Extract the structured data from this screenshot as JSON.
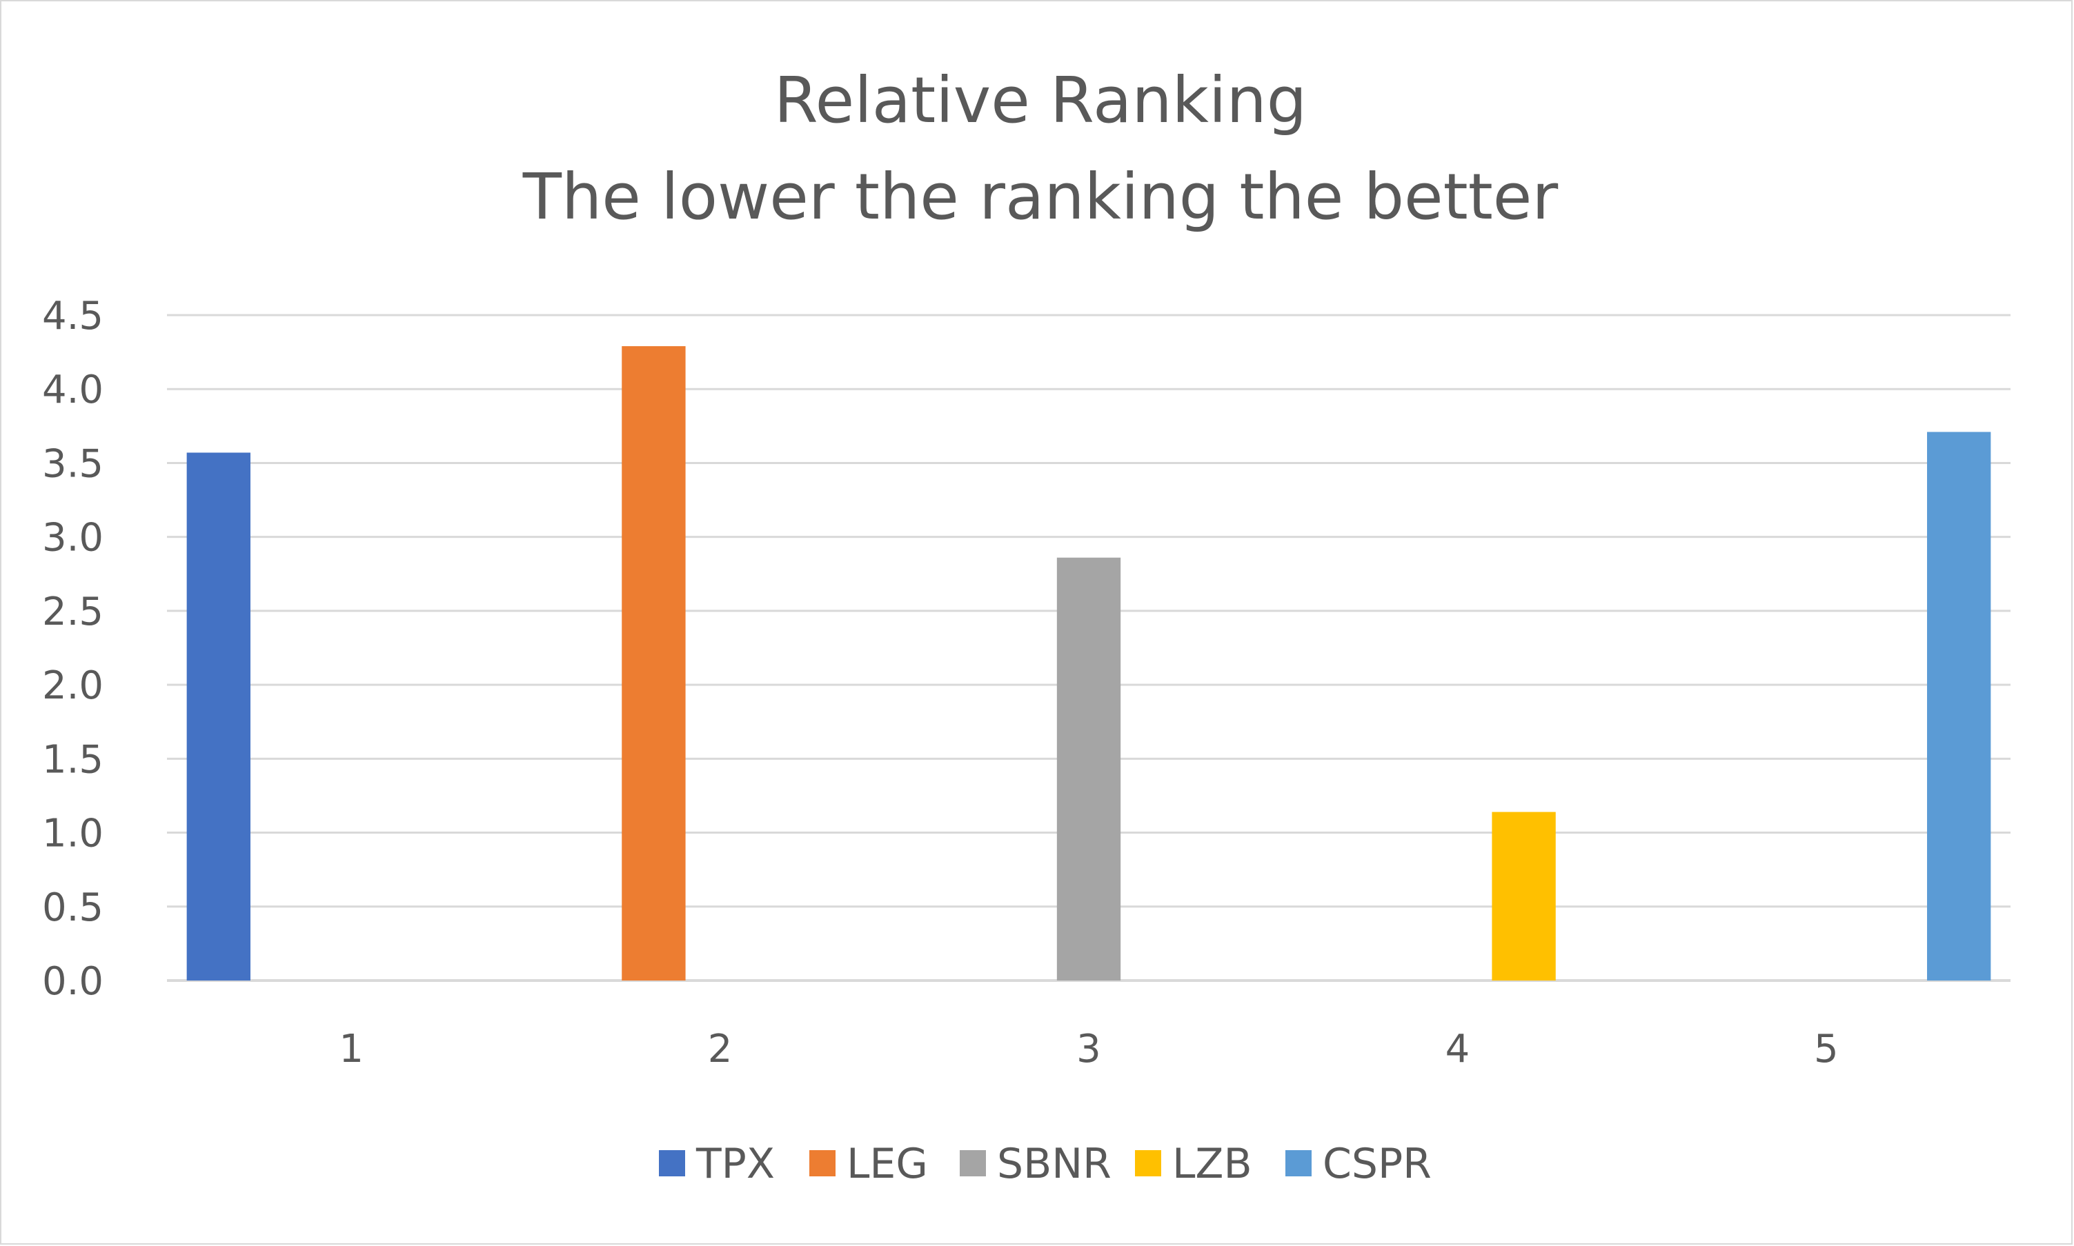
{
  "chart_data": {
    "type": "bar",
    "title": "Relative Ranking",
    "subtitle": "The lower the ranking the better",
    "xlabel": "",
    "ylabel": "",
    "categories": [
      "1",
      "2",
      "3",
      "4",
      "5"
    ],
    "y_ticks": [
      "0.0",
      "0.5",
      "1.0",
      "1.5",
      "2.0",
      "2.5",
      "3.0",
      "3.5",
      "4.0",
      "4.5"
    ],
    "ylim": [
      0,
      4.5
    ],
    "grid": true,
    "legend_position": "bottom",
    "series": [
      {
        "name": "TPX",
        "color": "#4472C4",
        "values": [
          3.57,
          null,
          null,
          null,
          null
        ]
      },
      {
        "name": "LEG",
        "color": "#ED7D31",
        "values": [
          null,
          4.29,
          null,
          null,
          null
        ]
      },
      {
        "name": "SBNR",
        "color": "#A5A5A5",
        "values": [
          null,
          null,
          2.86,
          null,
          null
        ]
      },
      {
        "name": "LZB",
        "color": "#FFC000",
        "values": [
          null,
          null,
          null,
          1.14,
          null
        ]
      },
      {
        "name": "CSPR",
        "color": "#5B9BD5",
        "values": [
          null,
          null,
          null,
          null,
          3.71
        ]
      }
    ]
  }
}
